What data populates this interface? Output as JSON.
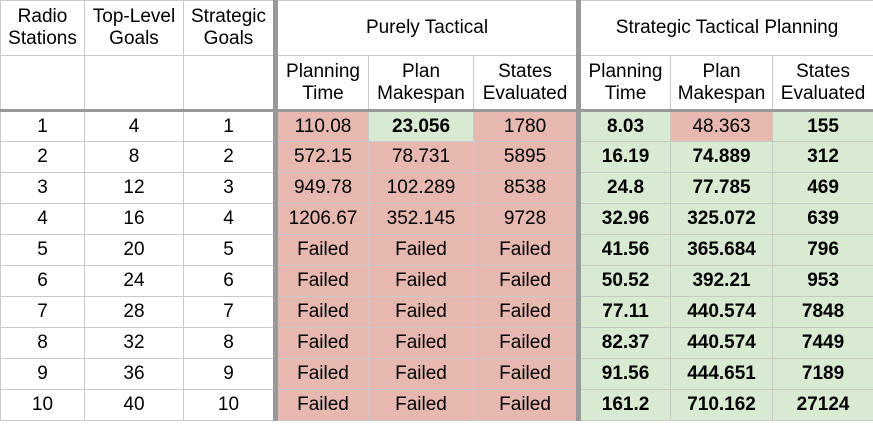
{
  "columns": {
    "radio_stations": "Radio Stations",
    "top_level_goals": "Top-Level Goals",
    "strategic_goals": "Strategic Goals"
  },
  "groups": {
    "purely_tactical": "Purely Tactical",
    "strategic_tactical": "Strategic Tactical Planning"
  },
  "subcolumns": {
    "planning_time": "Planning Time",
    "plan_makespan": "Plan Makespan",
    "states_evaluated": "States Evaluated"
  },
  "colors": {
    "worse": "#e6b8af",
    "better": "#d9ead3",
    "divider": "#999999"
  },
  "rows": [
    {
      "stations": "1",
      "top": "4",
      "strategic": "1",
      "pt": [
        "110.08",
        "23.056",
        "1780"
      ],
      "st": [
        "8.03",
        "48.363",
        "155"
      ]
    },
    {
      "stations": "2",
      "top": "8",
      "strategic": "2",
      "pt": [
        "572.15",
        "78.731",
        "5895"
      ],
      "st": [
        "16.19",
        "74.889",
        "312"
      ]
    },
    {
      "stations": "3",
      "top": "12",
      "strategic": "3",
      "pt": [
        "949.78",
        "102.289",
        "8538"
      ],
      "st": [
        "24.8",
        "77.785",
        "469"
      ]
    },
    {
      "stations": "4",
      "top": "16",
      "strategic": "4",
      "pt": [
        "1206.67",
        "352.145",
        "9728"
      ],
      "st": [
        "32.96",
        "325.072",
        "639"
      ]
    },
    {
      "stations": "5",
      "top": "20",
      "strategic": "5",
      "pt": [
        "Failed",
        "Failed",
        "Failed"
      ],
      "st": [
        "41.56",
        "365.684",
        "796"
      ]
    },
    {
      "stations": "6",
      "top": "24",
      "strategic": "6",
      "pt": [
        "Failed",
        "Failed",
        "Failed"
      ],
      "st": [
        "50.52",
        "392.21",
        "953"
      ]
    },
    {
      "stations": "7",
      "top": "28",
      "strategic": "7",
      "pt": [
        "Failed",
        "Failed",
        "Failed"
      ],
      "st": [
        "77.11",
        "440.574",
        "7848"
      ]
    },
    {
      "stations": "8",
      "top": "32",
      "strategic": "8",
      "pt": [
        "Failed",
        "Failed",
        "Failed"
      ],
      "st": [
        "82.37",
        "440.574",
        "7449"
      ]
    },
    {
      "stations": "9",
      "top": "36",
      "strategic": "9",
      "pt": [
        "Failed",
        "Failed",
        "Failed"
      ],
      "st": [
        "91.56",
        "444.651",
        "7189"
      ]
    },
    {
      "stations": "10",
      "top": "40",
      "strategic": "10",
      "pt": [
        "Failed",
        "Failed",
        "Failed"
      ],
      "st": [
        "161.2",
        "710.162",
        "27124"
      ]
    }
  ]
}
